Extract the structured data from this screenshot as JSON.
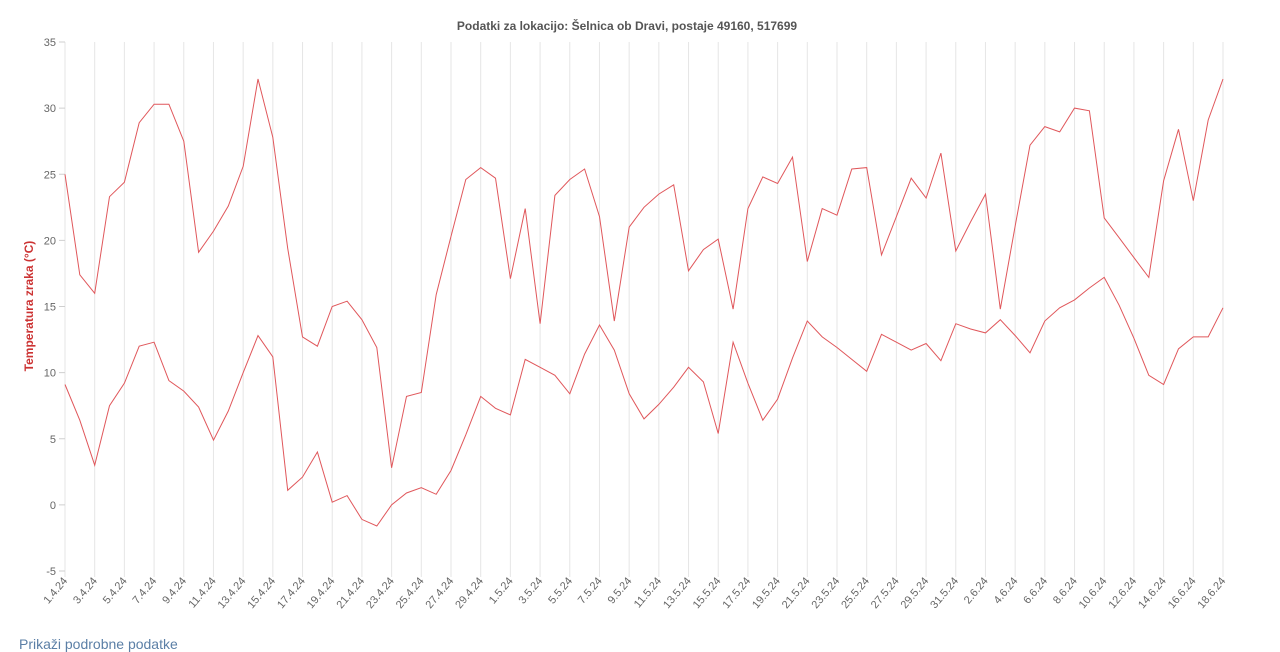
{
  "colors": {
    "series": "#e0575b",
    "link": "#5b7fa6",
    "ylabel": "#cc3333"
  },
  "footer": {
    "details_link": "Prikaži podrobne podatke"
  },
  "chart_data": {
    "type": "line",
    "title": "Podatki za lokacijo: Šelnica ob Dravi, postaje 49160, 517699",
    "xlabel": "",
    "ylabel": "Temperatura zraka (°C)",
    "ylim": [
      -5,
      35
    ],
    "yticks": [
      -5,
      0,
      5,
      10,
      15,
      20,
      25,
      30,
      35
    ],
    "grid": {
      "vertical": true,
      "horizontal": false
    },
    "legend": "none",
    "x": [
      "1.4.24",
      "2.4.24",
      "3.4.24",
      "4.4.24",
      "5.4.24",
      "6.4.24",
      "7.4.24",
      "8.4.24",
      "9.4.24",
      "10.4.24",
      "11.4.24",
      "12.4.24",
      "13.4.24",
      "14.4.24",
      "15.4.24",
      "16.4.24",
      "17.4.24",
      "18.4.24",
      "19.4.24",
      "20.4.24",
      "21.4.24",
      "22.4.24",
      "23.4.24",
      "24.4.24",
      "25.4.24",
      "26.4.24",
      "27.4.24",
      "28.4.24",
      "29.4.24",
      "30.4.24",
      "1.5.24",
      "2.5.24",
      "3.5.24",
      "4.5.24",
      "5.5.24",
      "6.5.24",
      "7.5.24",
      "8.5.24",
      "9.5.24",
      "10.5.24",
      "11.5.24",
      "12.5.24",
      "13.5.24",
      "14.5.24",
      "15.5.24",
      "16.5.24",
      "17.5.24",
      "18.5.24",
      "19.5.24",
      "20.5.24",
      "21.5.24",
      "22.5.24",
      "23.5.24",
      "24.5.24",
      "25.5.24",
      "26.5.24",
      "27.5.24",
      "28.5.24",
      "29.5.24",
      "30.5.24",
      "31.5.24",
      "1.6.24",
      "2.6.24",
      "3.6.24",
      "4.6.24",
      "5.6.24",
      "6.6.24",
      "7.6.24",
      "8.6.24",
      "9.6.24",
      "10.6.24",
      "11.6.24",
      "12.6.24",
      "13.6.24",
      "14.6.24",
      "15.6.24",
      "16.6.24",
      "17.6.24",
      "18.6.24"
    ],
    "xtick_labels": [
      "1.4.24",
      "3.4.24",
      "5.4.24",
      "7.4.24",
      "9.4.24",
      "11.4.24",
      "13.4.24",
      "15.4.24",
      "17.4.24",
      "19.4.24",
      "21.4.24",
      "23.4.24",
      "25.4.24",
      "27.4.24",
      "29.4.24",
      "1.5.24",
      "3.5.24",
      "5.5.24",
      "7.5.24",
      "9.5.24",
      "11.5.24",
      "13.5.24",
      "15.5.24",
      "17.5.24",
      "19.5.24",
      "21.5.24",
      "23.5.24",
      "25.5.24",
      "27.5.24",
      "29.5.24",
      "31.5.24",
      "2.6.24",
      "4.6.24",
      "6.6.24",
      "8.6.24",
      "10.6.24",
      "12.6.24",
      "14.6.24",
      "16.6.24",
      "18.6.24"
    ],
    "series": [
      {
        "values": [
          25,
          17.4,
          16,
          23.3,
          24.4,
          28.9,
          30.3,
          30.3,
          27.5,
          19.1,
          20.7,
          22.6,
          25.6,
          32.2,
          27.8,
          19.4,
          12.7,
          12,
          15,
          15.4,
          14,
          11.9,
          2.8,
          8.2,
          8.5,
          15.9,
          20.3,
          24.6,
          25.5,
          24.7,
          17.1,
          22.4,
          13.7,
          23.4,
          24.6,
          25.4,
          21.8,
          13.9,
          21,
          22.5,
          23.5,
          24.2,
          17.7,
          19.3,
          20.1,
          14.8,
          22.4,
          24.8,
          24.3,
          26.3,
          18.4,
          22.4,
          21.9,
          25.4,
          25.5,
          18.9,
          21.8,
          24.7,
          23.2,
          26.6,
          19.2,
          21.4,
          23.5,
          14.8,
          21.1,
          27.2,
          28.6,
          28.2,
          30,
          29.8,
          21.7,
          20.2,
          18.7,
          17.2,
          24.5,
          28.4,
          23,
          29.1,
          32.2
        ]
      },
      {
        "values": [
          9.1,
          6.4,
          3,
          7.5,
          9.2,
          12,
          12.3,
          9.4,
          8.6,
          7.4,
          4.9,
          7.1,
          10,
          12.8,
          11.2,
          1.1,
          2.1,
          4,
          0.2,
          0.7,
          -1.1,
          -1.6,
          0,
          0.9,
          1.3,
          0.8,
          2.6,
          5.3,
          8.2,
          7.3,
          6.8,
          11,
          10.4,
          9.8,
          8.4,
          11.4,
          13.6,
          11.7,
          8.4,
          6.5,
          7.6,
          8.9,
          10.4,
          9.3,
          5.4,
          12.3,
          9.2,
          6.4,
          8,
          11.1,
          13.9,
          12.7,
          11.9,
          11,
          10.1,
          12.9,
          12.3,
          11.7,
          12.2,
          10.9,
          13.7,
          13.3,
          13,
          14,
          12.8,
          11.5,
          13.9,
          14.9,
          15.5,
          16.4,
          17.2,
          15.1,
          12.6,
          9.8,
          9.1,
          11.8,
          12.7,
          12.7,
          14.9
        ]
      }
    ]
  }
}
